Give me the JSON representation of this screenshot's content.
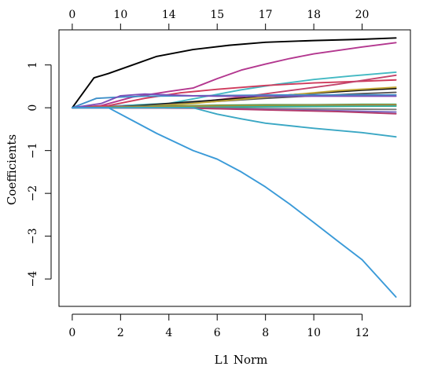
{
  "chart_data": {
    "type": "line",
    "title": "",
    "xlabel": "L1 Norm",
    "ylabel": "Coefficients",
    "xlim": [
      -0.55,
      14.0
    ],
    "ylim": [
      -4.64,
      1.82
    ],
    "x_ticks": [
      0,
      2,
      4,
      6,
      8,
      10,
      12
    ],
    "x_tick_labels": [
      "0",
      "2",
      "4",
      "6",
      "8",
      "10",
      "12"
    ],
    "y_ticks": [
      1,
      0,
      -1,
      -2,
      -3,
      -4
    ],
    "y_tick_labels": [
      "1",
      "0",
      "−1",
      "−2",
      "−3",
      "−4"
    ],
    "top_axis": {
      "ticks": [
        0,
        2,
        4,
        6,
        8,
        10,
        12
      ],
      "labels": [
        "0",
        "10",
        "14",
        "15",
        "17",
        "18",
        "20"
      ]
    },
    "grid": false,
    "legend": "none",
    "series": [
      {
        "color": "#000000",
        "x": [
          0,
          0.9,
          1.5,
          2.5,
          3.5,
          5,
          6.5,
          8,
          10,
          12,
          13.4
        ],
        "y": [
          0,
          0.7,
          0.8,
          1.0,
          1.2,
          1.36,
          1.46,
          1.53,
          1.57,
          1.6,
          1.63
        ]
      },
      {
        "color": "#b3378f",
        "x": [
          0,
          1.2,
          2.5,
          4,
          5,
          6,
          7,
          8,
          9,
          10,
          11,
          12,
          13.4
        ],
        "y": [
          0,
          0.05,
          0.25,
          0.38,
          0.46,
          0.68,
          0.88,
          1.02,
          1.15,
          1.26,
          1.34,
          1.42,
          1.52
        ]
      },
      {
        "color": "#43b9c3",
        "x": [
          0,
          4,
          5.5,
          7,
          8.5,
          10,
          11.5,
          13.4
        ],
        "y": [
          0,
          0.1,
          0.26,
          0.42,
          0.55,
          0.66,
          0.74,
          0.83
        ]
      },
      {
        "color": "#cf3b5c",
        "x": [
          0,
          1.5,
          3,
          4.5,
          6,
          8,
          10,
          12,
          13.4
        ],
        "y": [
          0,
          0.05,
          0.22,
          0.35,
          0.43,
          0.52,
          0.58,
          0.62,
          0.65
        ]
      },
      {
        "color": "#c2436b",
        "x": [
          0,
          3,
          5,
          7,
          9,
          11,
          12.5,
          13.4
        ],
        "y": [
          0,
          0.05,
          0.12,
          0.25,
          0.4,
          0.55,
          0.68,
          0.76
        ]
      },
      {
        "color": "#111111",
        "x": [
          0,
          2,
          4,
          6,
          8,
          10,
          12,
          13.4
        ],
        "y": [
          0,
          0.02,
          0.1,
          0.18,
          0.26,
          0.34,
          0.41,
          0.45
        ]
      },
      {
        "color": "#555555",
        "x": [
          0,
          2,
          4,
          6,
          8,
          10,
          12,
          13.4
        ],
        "y": [
          0,
          0.02,
          0.08,
          0.15,
          0.22,
          0.28,
          0.33,
          0.36
        ]
      },
      {
        "color": "#c3a83a",
        "x": [
          0,
          3,
          5,
          7,
          9,
          11,
          13.4
        ],
        "y": [
          0,
          0.03,
          0.1,
          0.2,
          0.3,
          0.4,
          0.48
        ]
      },
      {
        "color": "#3e8fc9",
        "x": [
          0,
          1,
          2,
          3,
          5,
          7,
          9,
          11,
          13.4
        ],
        "y": [
          0,
          0.22,
          0.25,
          0.27,
          0.28,
          0.29,
          0.3,
          0.3,
          0.3
        ]
      },
      {
        "color": "#7e4fb8",
        "x": [
          0,
          1.2,
          2,
          3,
          4,
          5,
          6,
          13.4
        ],
        "y": [
          0,
          0.1,
          0.28,
          0.32,
          0.3,
          0.28,
          0.27,
          0.27
        ]
      },
      {
        "color": "#4f9c4b",
        "x": [
          0,
          2,
          4,
          6,
          8,
          10,
          12,
          13.4
        ],
        "y": [
          0,
          0.02,
          0.04,
          0.06,
          0.07,
          0.07,
          0.08,
          0.08
        ]
      },
      {
        "color": "#d97c3a",
        "x": [
          0,
          3,
          6,
          9,
          12,
          13.4
        ],
        "y": [
          0,
          0.02,
          0.04,
          0.05,
          0.06,
          0.06
        ]
      },
      {
        "color": "#8aa03a",
        "x": [
          0,
          3,
          6,
          9,
          12,
          13.4
        ],
        "y": [
          0,
          0.01,
          0.03,
          0.04,
          0.04,
          0.04
        ]
      },
      {
        "color": "#2fae9a",
        "x": [
          0,
          4,
          7,
          10,
          13.4
        ],
        "y": [
          0,
          0.0,
          0.02,
          0.03,
          0.04
        ]
      },
      {
        "color": "#7a7a7a",
        "x": [
          0,
          5,
          8,
          11,
          13.4
        ],
        "y": [
          0,
          0.0,
          -0.02,
          -0.03,
          -0.04
        ]
      },
      {
        "color": "#7a6bc2",
        "x": [
          0,
          5,
          8,
          11,
          13.4
        ],
        "y": [
          0,
          -0.01,
          -0.04,
          -0.07,
          -0.1
        ]
      },
      {
        "color": "#b33a6a",
        "x": [
          0,
          5,
          8,
          11,
          13.4
        ],
        "y": [
          0,
          -0.01,
          -0.05,
          -0.09,
          -0.14
        ]
      },
      {
        "color": "#3aa7c4",
        "x": [
          0,
          5,
          6,
          7,
          8,
          10,
          12,
          13.4
        ],
        "y": [
          0,
          0,
          -0.15,
          -0.26,
          -0.36,
          -0.48,
          -0.58,
          -0.68
        ]
      },
      {
        "color": "#3a9ad8",
        "x": [
          0,
          1.5,
          2.5,
          3.5,
          5,
          6,
          7,
          8,
          9,
          10,
          11,
          12,
          13.4
        ],
        "y": [
          0,
          0,
          -0.3,
          -0.6,
          -1.0,
          -1.2,
          -1.5,
          -1.85,
          -2.25,
          -2.68,
          -3.12,
          -3.55,
          -4.42
        ]
      }
    ]
  }
}
